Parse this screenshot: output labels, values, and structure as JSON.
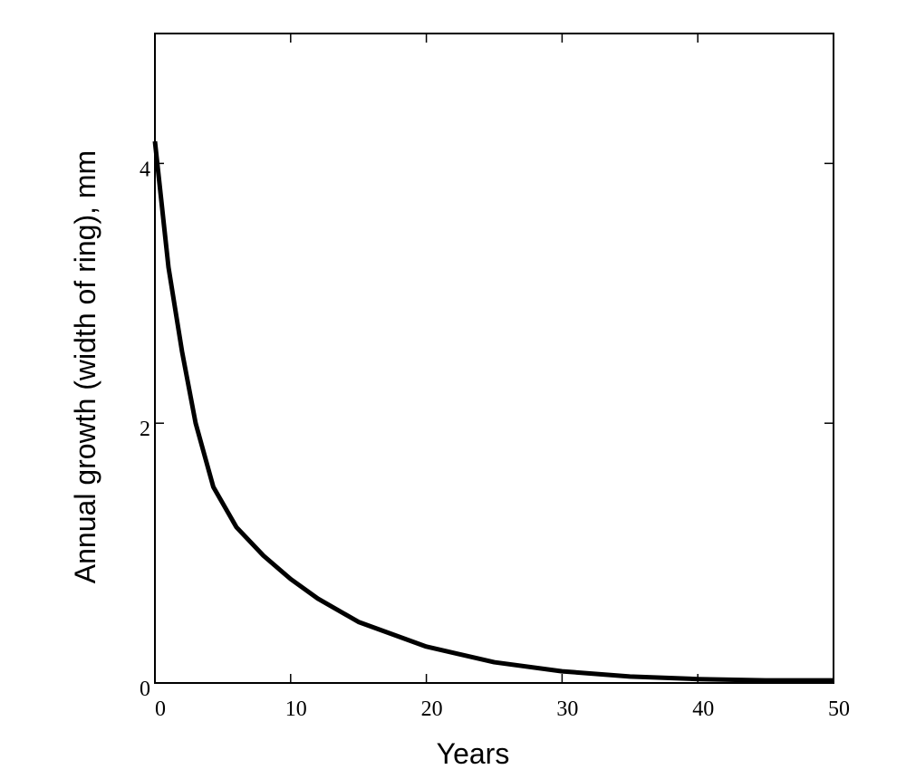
{
  "chart_data": {
    "type": "line",
    "xlabel": "Years",
    "ylabel": "Annual growth (width of ring),  mm",
    "x": [
      0,
      1,
      2,
      3,
      4.3,
      6,
      8,
      10,
      12,
      15,
      20,
      25,
      30,
      35,
      40,
      45,
      50
    ],
    "series": [
      {
        "color": "#000000",
        "values": [
          4.17,
          3.2,
          2.55,
          2.0,
          1.51,
          1.2,
          0.98,
          0.8,
          0.65,
          0.47,
          0.28,
          0.16,
          0.09,
          0.05,
          0.03,
          0.02,
          0.02
        ]
      }
    ],
    "xlim": [
      0,
      50
    ],
    "xticks": [
      0,
      10,
      20,
      30,
      40,
      50
    ],
    "ylim": [
      0,
      5
    ],
    "yticks": [
      0,
      2,
      4
    ]
  }
}
